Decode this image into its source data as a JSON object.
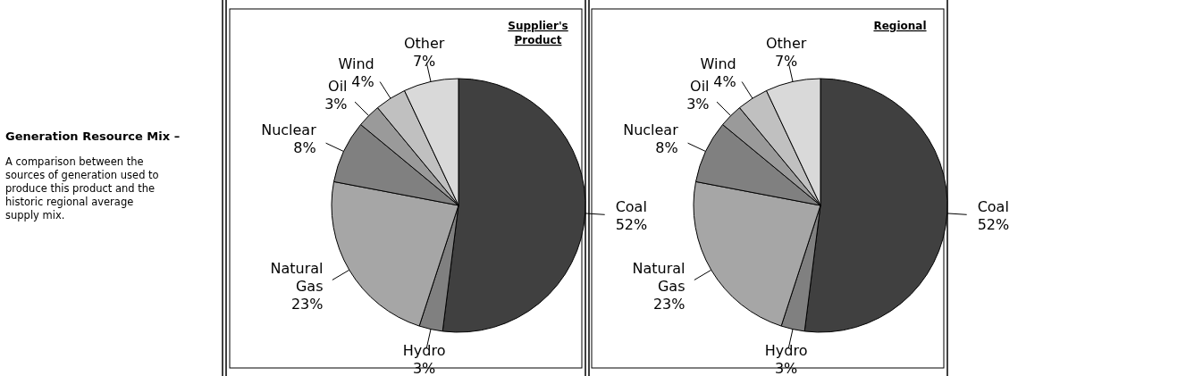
{
  "chart_data": [
    {
      "type": "other",
      "title": "Generation Resource Mix –",
      "subtitle": "A comparison between the sources of generation used to produce this product and the historic regional average supply mix."
    },
    {
      "type": "pie",
      "title": "Supplier's Product",
      "categories": [
        "Coal",
        "Hydro",
        "Natural Gas",
        "Nuclear",
        "Oil",
        "Wind",
        "Other"
      ],
      "values": [
        52,
        3,
        23,
        8,
        3,
        4,
        7
      ],
      "value_labels": [
        "52%",
        "3%",
        "23%",
        "8%",
        "3%",
        "4%",
        "7%"
      ],
      "colors": [
        "#404040",
        "#808080",
        "#a6a6a6",
        "#808080",
        "#9a9a9a",
        "#c0c0c0",
        "#d9d9d9"
      ]
    },
    {
      "type": "pie",
      "title": "Regional",
      "categories": [
        "Coal",
        "Hydro",
        "Natural Gas",
        "Nuclear",
        "Oil",
        "Wind",
        "Other"
      ],
      "values": [
        52,
        3,
        23,
        8,
        3,
        4,
        7
      ],
      "value_labels": [
        "52%",
        "3%",
        "23%",
        "8%",
        "3%",
        "4%",
        "7%"
      ],
      "colors": [
        "#404040",
        "#808080",
        "#a6a6a6",
        "#808080",
        "#9a9a9a",
        "#c0c0c0",
        "#d9d9d9"
      ]
    }
  ]
}
